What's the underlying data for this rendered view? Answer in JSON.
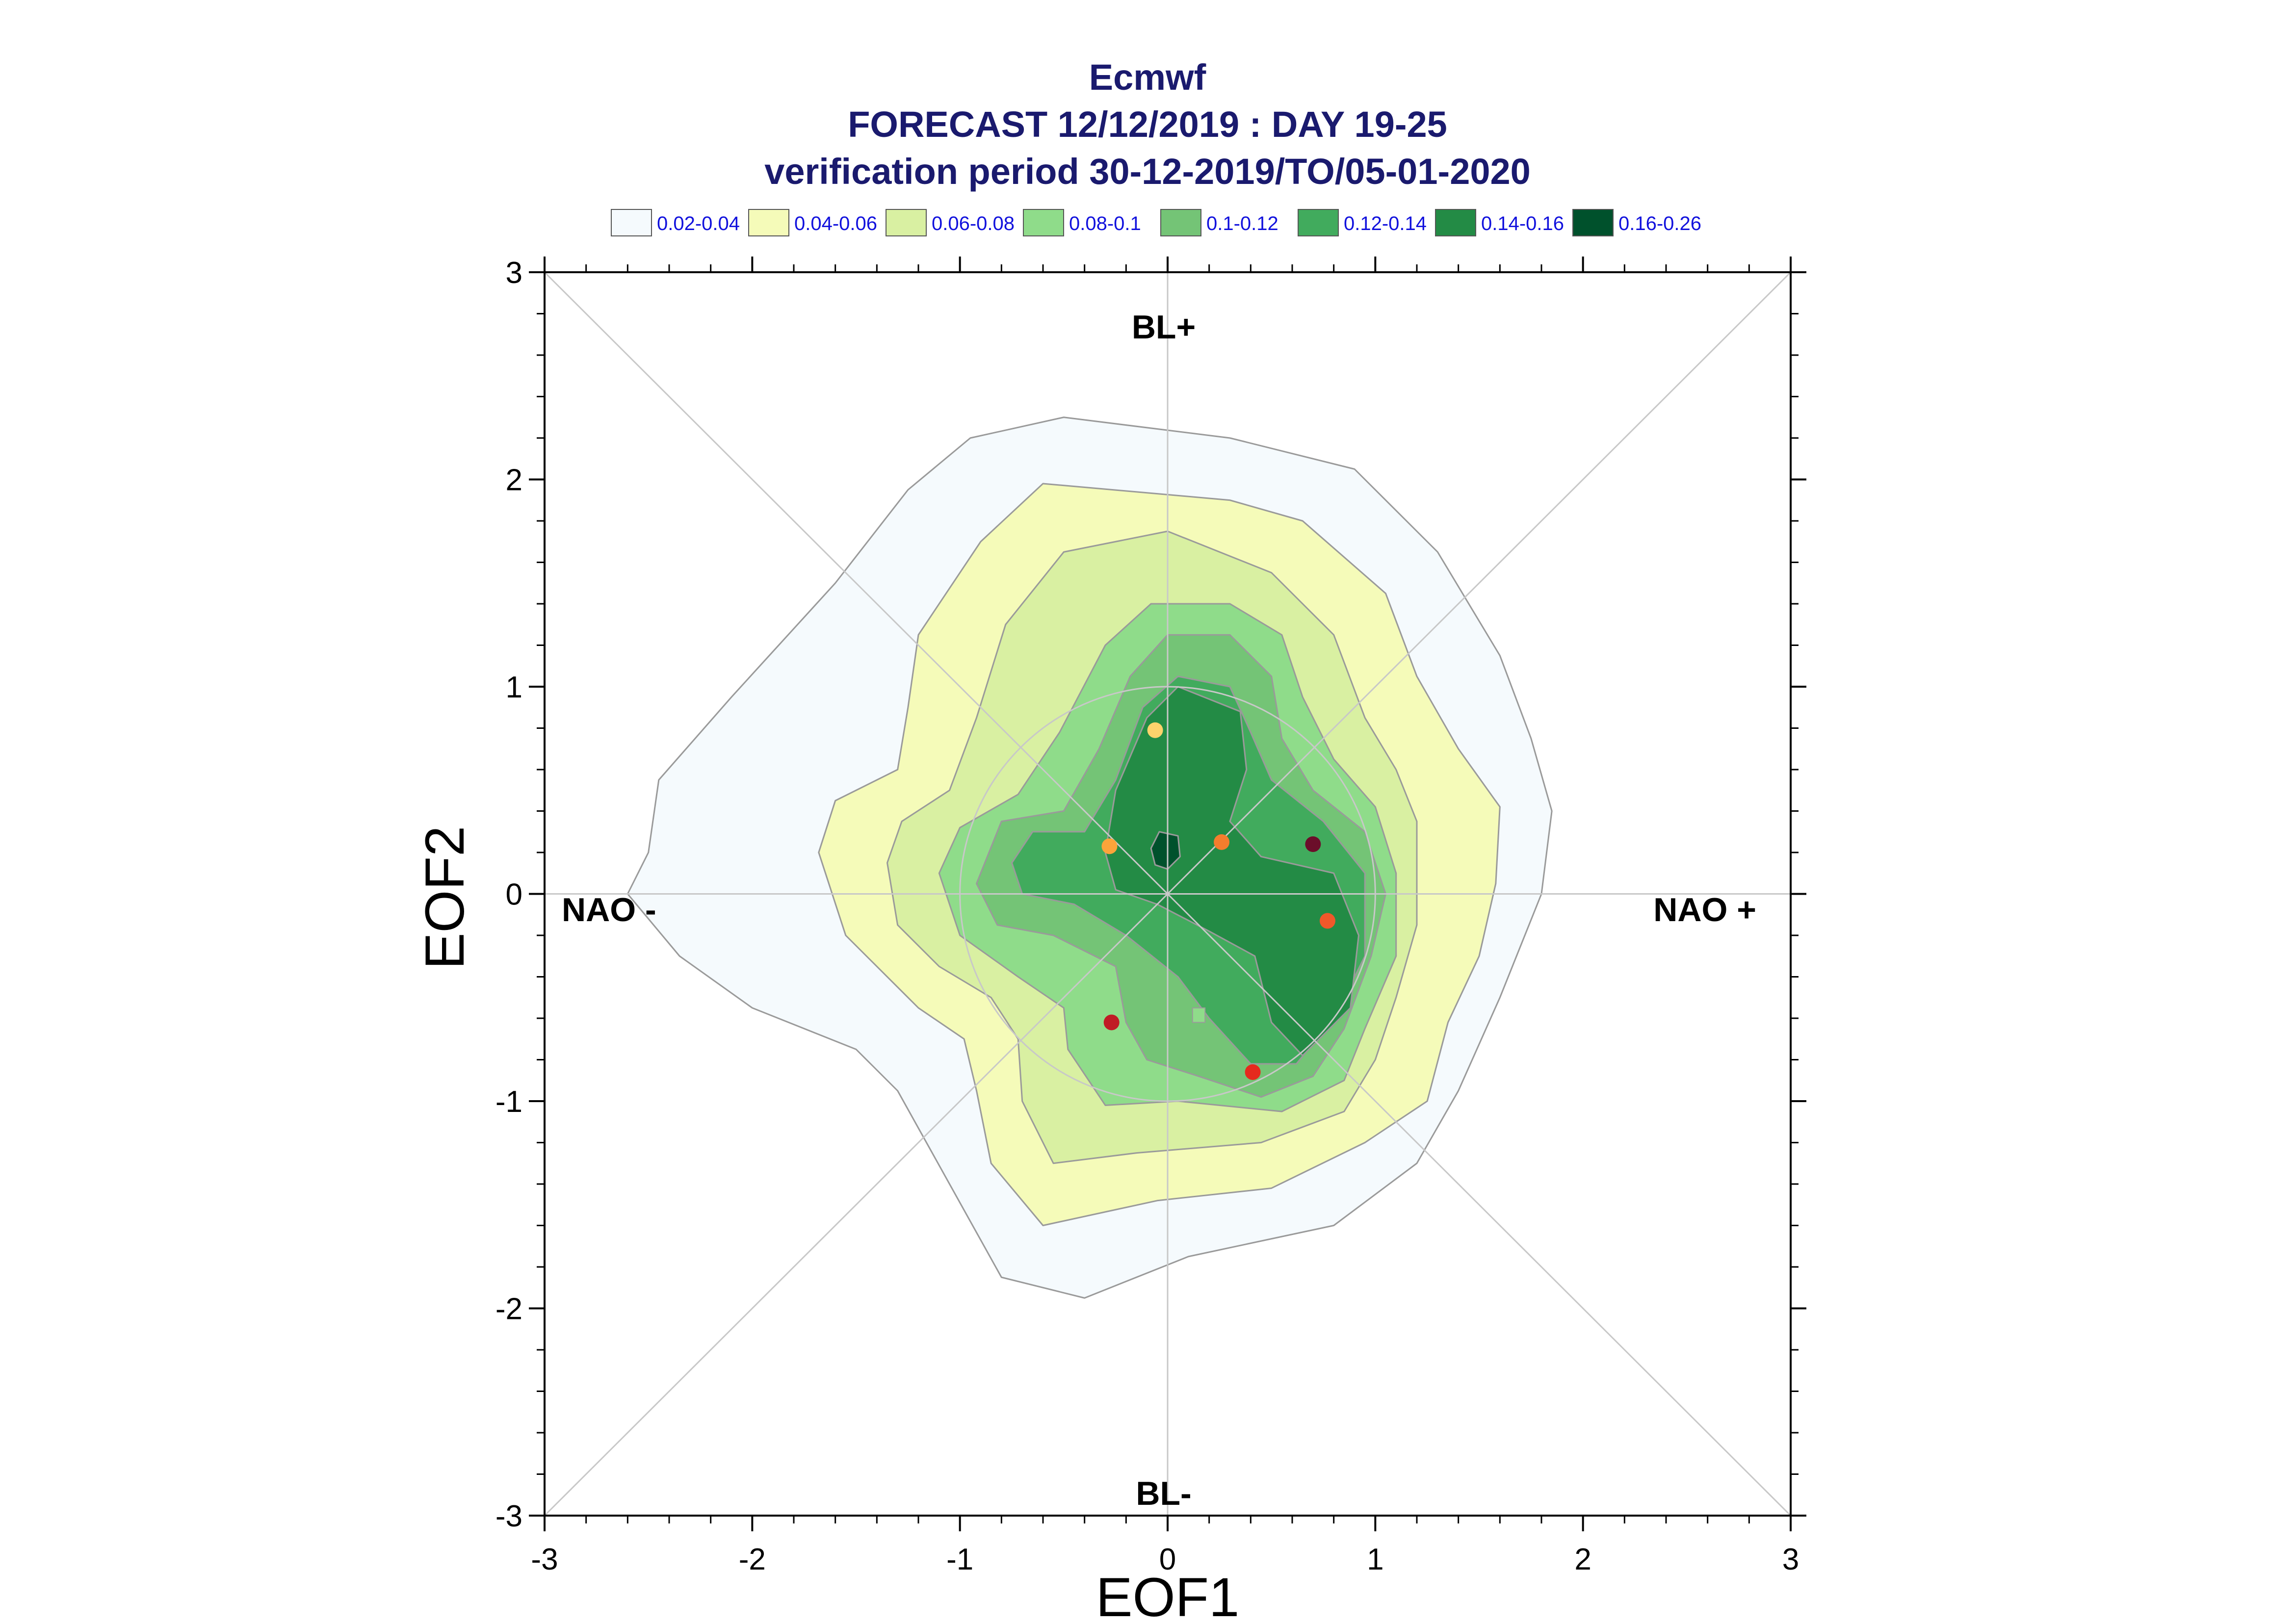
{
  "chart_data": {
    "type": "contour",
    "title": "Ecmwf",
    "subtitle_1": "FORECAST 12/12/2019 : DAY 19-25",
    "subtitle_2": "verification period 30-12-2019/TO/05-01-2020",
    "xlabel": "EOF1",
    "ylabel": "EOF2",
    "xlim": [
      -3,
      3
    ],
    "ylim": [
      -3,
      3
    ],
    "x_ticks": [
      "-3",
      "-2",
      "-1",
      "0",
      "1",
      "2",
      "3"
    ],
    "y_ticks": [
      "3",
      "2",
      "1",
      "0",
      "-1",
      "-2",
      "-3"
    ],
    "regions": {
      "top": "BL+",
      "bottom": "BL-",
      "left": "NAO -",
      "right": "NAO +"
    },
    "legend_placement": "top",
    "levels": [
      {
        "label": "0.02-0.04",
        "color": "#f5fafd"
      },
      {
        "label": "0.04-0.06",
        "color": "#f5fbb9"
      },
      {
        "label": "0.06-0.08",
        "color": "#d9f0a2"
      },
      {
        "label": "0.08-0.1",
        "color": "#8fdc8a"
      },
      {
        "label": "0.1-0.12",
        "color": "#74c476"
      },
      {
        "label": "0.12-0.14",
        "color": "#41ab5d"
      },
      {
        "label": "0.14-0.16",
        "color": "#238b45"
      },
      {
        "label": "0.16-0.26",
        "color": "#00512c"
      }
    ],
    "members": [
      {
        "x": -0.06,
        "y": 0.79,
        "color": "#fdd36c"
      },
      {
        "x": -0.28,
        "y": 0.23,
        "color": "#fba43a"
      },
      {
        "x": 0.26,
        "y": 0.25,
        "color": "#f47d2d"
      },
      {
        "x": 0.7,
        "y": 0.24,
        "color": "#6b0e2a"
      },
      {
        "x": 0.77,
        "y": -0.13,
        "color": "#f0582a"
      },
      {
        "x": -0.27,
        "y": -0.62,
        "color": "#c01c25"
      },
      {
        "x": 0.41,
        "y": -0.86,
        "color": "#e52a1e"
      }
    ],
    "reference_circle_radius": 1,
    "grid": false
  }
}
